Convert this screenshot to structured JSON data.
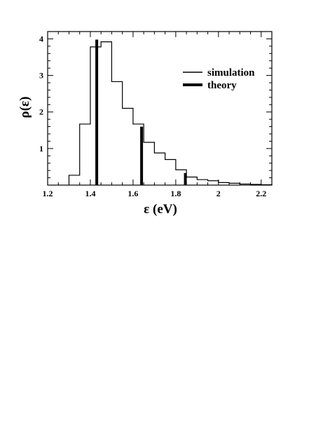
{
  "chart_data": {
    "type": "histogram",
    "xlabel": "ε (eV)",
    "ylabel": "ρ(ε)",
    "xlim": [
      1.2,
      2.25
    ],
    "ylim": [
      0,
      4.2
    ],
    "x_ticks": [
      1.2,
      1.4,
      1.6,
      1.8,
      2.0,
      2.2
    ],
    "x_tick_labels": [
      "1.2",
      "1.4",
      "1.6",
      "1.8",
      "2",
      "2.2"
    ],
    "y_ticks": [
      1,
      2,
      3,
      4
    ],
    "y_tick_labels": [
      "1",
      "2",
      "3",
      "4"
    ],
    "grid": false,
    "legend_position": "top-right",
    "series": [
      {
        "name": "simulation",
        "style": "thin-step",
        "bin_edges": [
          1.3,
          1.35,
          1.4,
          1.45,
          1.5,
          1.55,
          1.6,
          1.65,
          1.7,
          1.75,
          1.8,
          1.85,
          1.9,
          1.95,
          2.0,
          2.05,
          2.1,
          2.15,
          2.2,
          2.25
        ],
        "values": [
          0.27,
          1.67,
          3.78,
          3.92,
          2.83,
          2.1,
          1.67,
          1.17,
          0.88,
          0.7,
          0.42,
          0.22,
          0.15,
          0.12,
          0.07,
          0.05,
          0.03,
          0.02,
          0.01
        ]
      },
      {
        "name": "theory",
        "style": "thick-stick",
        "x": [
          1.43,
          1.64,
          1.845
        ],
        "values": [
          3.98,
          1.6,
          0.33
        ]
      }
    ]
  }
}
